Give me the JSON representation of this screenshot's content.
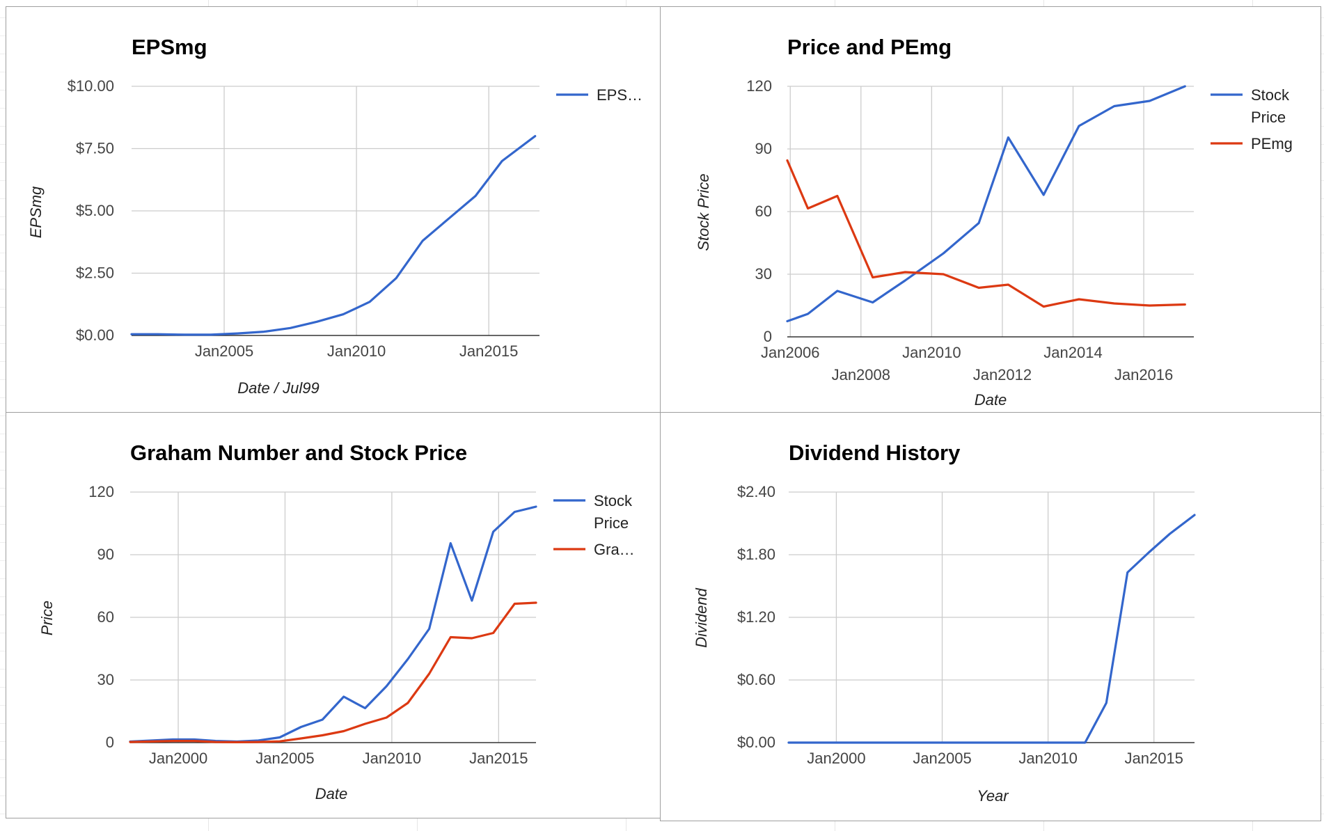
{
  "palette": {
    "blue": "#3366cc",
    "red": "#dc3912"
  },
  "charts": [
    {
      "title": "EPSmg",
      "xlabel": "Date / Jul99",
      "ylabel": "EPSmg",
      "ytick_labels": [
        "$0.00",
        "$2.50",
        "$5.00",
        "$7.50",
        "$10.00"
      ],
      "xtick_labels": [
        "Jan2005",
        "Jan2010",
        "Jan2015"
      ],
      "legend": [
        {
          "label": "EPS…",
          "color": "#3366cc"
        }
      ]
    },
    {
      "title": "Price and PEmg",
      "xlabel": "Date",
      "ylabel": "Stock Price",
      "ytick_labels": [
        "0",
        "30",
        "60",
        "90",
        "120"
      ],
      "xtick_labels": [
        "Jan2006",
        "Jan2008",
        "Jan2010",
        "Jan2012",
        "Jan2014",
        "Jan2016"
      ],
      "legend": [
        {
          "label_lines": [
            "Stock",
            "Price"
          ],
          "color": "#3366cc"
        },
        {
          "label": "PEmg",
          "color": "#dc3912"
        }
      ]
    },
    {
      "title": "Graham Number and Stock Price",
      "xlabel": "Date",
      "ylabel": "Price",
      "ytick_labels": [
        "0",
        "30",
        "60",
        "90",
        "120"
      ],
      "xtick_labels": [
        "Jan2000",
        "Jan2005",
        "Jan2010",
        "Jan2015"
      ],
      "legend": [
        {
          "label_lines": [
            "Stock",
            "Price"
          ],
          "color": "#3366cc"
        },
        {
          "label": "Gra…",
          "color": "#dc3912"
        }
      ]
    },
    {
      "title": "Dividend History",
      "xlabel": "Year",
      "ylabel": "Dividend",
      "ytick_labels": [
        "$0.00",
        "$0.60",
        "$1.20",
        "$1.80",
        "$2.40"
      ],
      "xtick_labels": [
        "Jan2000",
        "Jan2005",
        "Jan2010",
        "Jan2015"
      ],
      "legend": []
    }
  ],
  "chart_data": [
    {
      "type": "line",
      "title": "EPSmg",
      "xlabel": "Date / Jul99",
      "ylabel": "EPSmg",
      "ylim": [
        0,
        10
      ],
      "x_range": [
        "2001-07",
        "2016-12"
      ],
      "y_format": "currency",
      "grid": true,
      "legend_position": "right",
      "series": [
        {
          "name": "EPS…",
          "color": "#3366cc",
          "x": [
            "2001-07",
            "2002-07",
            "2003-07",
            "2004-07",
            "2005-07",
            "2006-07",
            "2007-07",
            "2008-07",
            "2009-07",
            "2010-07",
            "2011-07",
            "2012-07",
            "2013-07",
            "2014-07",
            "2015-07",
            "2016-10"
          ],
          "values": [
            0.05,
            0.05,
            0.03,
            0.03,
            0.08,
            0.15,
            0.3,
            0.55,
            0.85,
            1.35,
            2.3,
            3.8,
            4.7,
            5.6,
            7.0,
            8.0
          ]
        }
      ]
    },
    {
      "type": "line",
      "title": "Price and PEmg",
      "xlabel": "Date",
      "ylabel": "Stock Price",
      "ylim": [
        0,
        120
      ],
      "x_range": [
        "2005-12",
        "2017-06"
      ],
      "grid": true,
      "legend_position": "right",
      "series": [
        {
          "name": "Stock Price",
          "color": "#3366cc",
          "x": [
            "2005-12",
            "2006-07",
            "2007-05",
            "2008-05",
            "2009-04",
            "2010-05",
            "2011-05",
            "2012-03",
            "2013-03",
            "2014-03",
            "2015-03",
            "2016-03",
            "2017-03"
          ],
          "values": [
            7.5,
            11,
            22,
            16.5,
            27,
            40,
            54.5,
            95.5,
            68,
            101,
            110.5,
            113,
            120
          ]
        },
        {
          "name": "PEmg",
          "color": "#dc3912",
          "x": [
            "2005-12",
            "2006-07",
            "2007-05",
            "2008-05",
            "2009-04",
            "2010-05",
            "2011-05",
            "2012-03",
            "2013-03",
            "2014-03",
            "2015-03",
            "2016-03",
            "2017-03"
          ],
          "values": [
            84.5,
            61.5,
            67.5,
            28.5,
            31,
            30,
            23.5,
            25,
            14.5,
            18,
            16,
            15,
            15.5
          ]
        }
      ]
    },
    {
      "type": "line",
      "title": "Graham Number and Stock Price",
      "xlabel": "Date",
      "ylabel": "Price",
      "ylim": [
        0,
        120
      ],
      "x_range": [
        "1997-10",
        "2016-10"
      ],
      "grid": true,
      "legend_position": "right",
      "series": [
        {
          "name": "Stock Price",
          "color": "#3366cc",
          "x": [
            "1997-10",
            "1999-10",
            "2000-10",
            "2001-10",
            "2002-10",
            "2003-10",
            "2004-10",
            "2005-10",
            "2006-10",
            "2007-10",
            "2008-10",
            "2009-10",
            "2010-10",
            "2011-10",
            "2012-10",
            "2013-10",
            "2014-10",
            "2015-10",
            "2016-10"
          ],
          "values": [
            0.5,
            1.5,
            1.5,
            0.8,
            0.5,
            1,
            2.5,
            7.5,
            11,
            22,
            16.5,
            27,
            40,
            54.5,
            95.5,
            68,
            101,
            110.5,
            113
          ]
        },
        {
          "name": "Gra…",
          "color": "#dc3912",
          "x": [
            "1997-10",
            "1999-10",
            "2000-10",
            "2001-10",
            "2002-10",
            "2003-10",
            "2004-10",
            "2005-10",
            "2006-10",
            "2007-10",
            "2008-10",
            "2009-10",
            "2010-10",
            "2011-10",
            "2012-10",
            "2013-10",
            "2014-10",
            "2015-10",
            "2016-10"
          ],
          "values": [
            0.3,
            0.8,
            0.8,
            0.3,
            0.2,
            0.3,
            0.6,
            2,
            3.5,
            5.5,
            9,
            12,
            19,
            33,
            50.5,
            50,
            52.5,
            66.5,
            67
          ]
        }
      ]
    },
    {
      "type": "line",
      "title": "Dividend History",
      "xlabel": "Year",
      "ylabel": "Dividend",
      "ylim": [
        0,
        2.4
      ],
      "x_range": [
        "1997-10",
        "2016-12"
      ],
      "y_format": "currency",
      "grid": true,
      "legend_position": "none",
      "series": [
        {
          "name": "",
          "color": "#3366cc",
          "x": [
            "1997-10",
            "2011-10",
            "2012-10",
            "2013-10",
            "2014-10",
            "2015-10",
            "2016-12"
          ],
          "values": [
            0,
            0,
            0.38,
            1.63,
            1.82,
            2.0,
            2.18
          ]
        }
      ]
    }
  ]
}
